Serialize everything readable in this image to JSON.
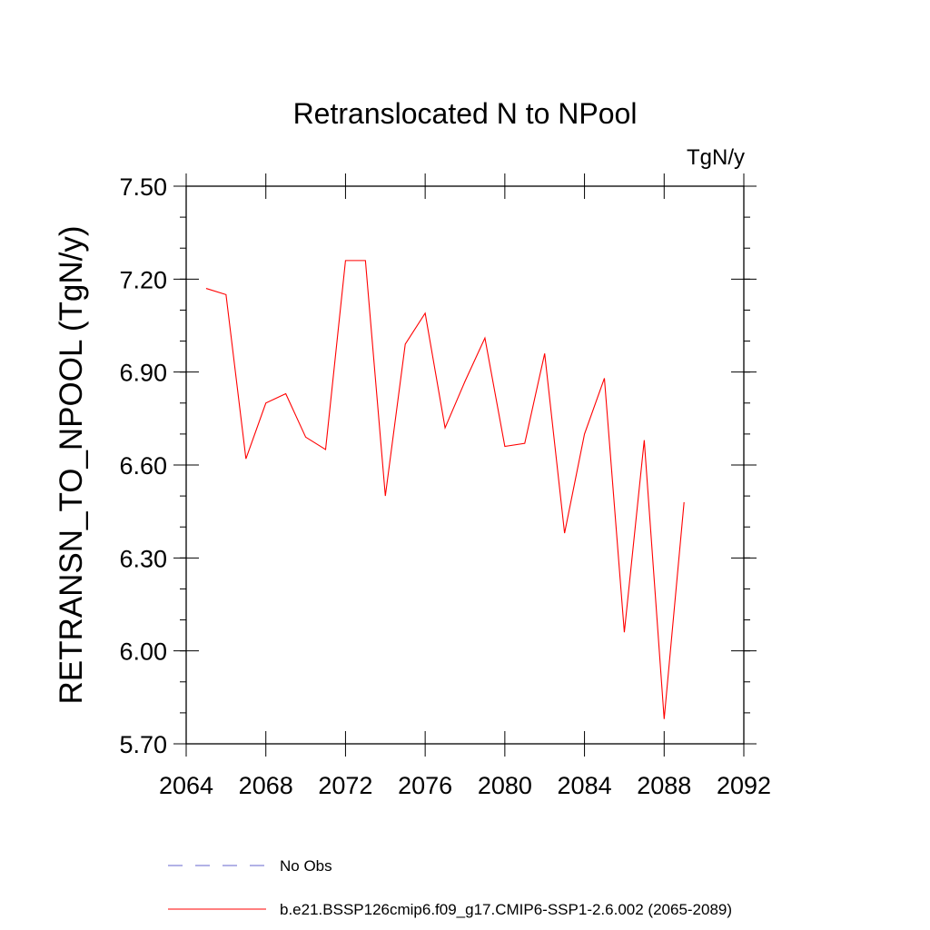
{
  "chart_data": {
    "type": "line",
    "title": "Retranslocated N to NPool",
    "units": "TgN/y",
    "xlabel": "",
    "ylabel": "RETRANSN_TO_NPOOL  (TgN/y)",
    "xlim": [
      2064,
      2092
    ],
    "ylim": [
      5.7,
      7.5
    ],
    "x_ticks": [
      2064,
      2068,
      2072,
      2076,
      2080,
      2084,
      2088,
      2092
    ],
    "x_tick_labels": [
      "2064",
      "2068",
      "2072",
      "2076",
      "2080",
      "2084",
      "2088",
      "2092"
    ],
    "y_ticks": [
      5.7,
      6.0,
      6.3,
      6.6,
      6.9,
      7.2,
      7.5
    ],
    "y_tick_labels": [
      "5.70",
      "6.00",
      "6.30",
      "6.60",
      "6.90",
      "7.20",
      "7.50"
    ],
    "grid": false,
    "series": [
      {
        "name": "b.e21.BSSP126cmip6.f09_g17.CMIP6-SSP1-2.6.002 (2065-2089)",
        "color": "#ff0000",
        "style": "solid",
        "x": [
          2065,
          2066,
          2067,
          2068,
          2069,
          2070,
          2071,
          2072,
          2073,
          2074,
          2075,
          2076,
          2077,
          2078,
          2079,
          2080,
          2081,
          2082,
          2083,
          2084,
          2085,
          2086,
          2087,
          2088,
          2089
        ],
        "values": [
          7.17,
          7.15,
          6.62,
          6.8,
          6.83,
          6.69,
          6.65,
          7.26,
          7.26,
          6.5,
          6.99,
          7.09,
          6.72,
          6.87,
          7.01,
          6.66,
          6.67,
          6.96,
          6.38,
          6.7,
          6.88,
          6.06,
          6.68,
          5.78,
          6.48
        ]
      }
    ],
    "legend": {
      "placement": "bottom-left",
      "entries": [
        {
          "label": "No Obs",
          "color": "#6666cc",
          "style": "dashed"
        },
        {
          "label": "b.e21.BSSP126cmip6.f09_g17.CMIP6-SSP1-2.6.002 (2065-2089)",
          "color": "#ff0000",
          "style": "solid"
        }
      ]
    }
  }
}
